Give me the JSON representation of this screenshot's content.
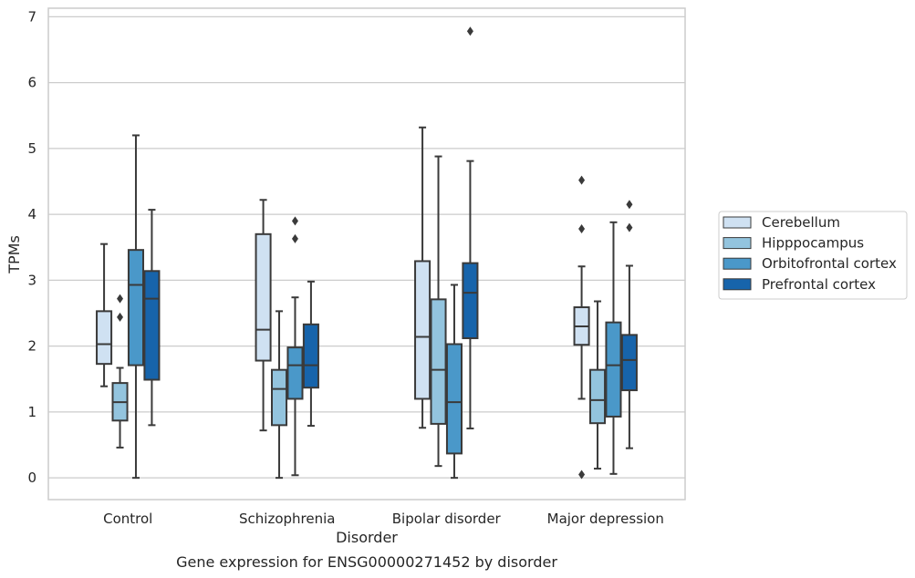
{
  "caption": "Gene expression for ENSG00000271452 by disorder",
  "colors": {
    "Cerebellum": "#cfe1f2",
    "Hipppocampus": "#93c4de",
    "Orbitofrontal cortex": "#4a98c9",
    "Prefrontal cortex": "#1764ab",
    "frame": "#cccccc",
    "grid": "#cccccc",
    "line": "#3a3a3a"
  },
  "chart_data": {
    "type": "box",
    "title": "",
    "xlabel": "Disorder",
    "ylabel": "TPMs",
    "ylim": [
      -0.33,
      7.13
    ],
    "yticks": [
      0,
      1,
      2,
      3,
      4,
      5,
      6,
      7
    ],
    "grid": "horizontal",
    "legend_position": "right",
    "categories": [
      "Control",
      "Schizophrenia",
      "Bipolar disorder",
      "Major depression"
    ],
    "series": [
      {
        "name": "Cerebellum",
        "boxes": [
          {
            "whisker_low": 1.39,
            "q1": 1.73,
            "median": 2.03,
            "q3": 2.53,
            "whisker_high": 3.55,
            "outliers": []
          },
          {
            "whisker_low": 0.72,
            "q1": 1.78,
            "median": 2.25,
            "q3": 3.7,
            "whisker_high": 4.22,
            "outliers": []
          },
          {
            "whisker_low": 0.76,
            "q1": 1.2,
            "median": 2.14,
            "q3": 3.29,
            "whisker_high": 5.32,
            "outliers": []
          },
          {
            "whisker_low": 1.2,
            "q1": 2.02,
            "median": 2.3,
            "q3": 2.59,
            "whisker_high": 3.21,
            "outliers": [
              0.05,
              3.78,
              4.52
            ]
          }
        ]
      },
      {
        "name": "Hipppocampus",
        "boxes": [
          {
            "whisker_low": 0.46,
            "q1": 0.87,
            "median": 1.15,
            "q3": 1.44,
            "whisker_high": 1.67,
            "outliers": [
              2.44,
              2.72
            ]
          },
          {
            "whisker_low": 0.0,
            "q1": 0.8,
            "median": 1.35,
            "q3": 1.64,
            "whisker_high": 2.53,
            "outliers": []
          },
          {
            "whisker_low": 0.18,
            "q1": 0.82,
            "median": 1.64,
            "q3": 2.71,
            "whisker_high": 4.88,
            "outliers": []
          },
          {
            "whisker_low": 0.14,
            "q1": 0.83,
            "median": 1.18,
            "q3": 1.64,
            "whisker_high": 2.68,
            "outliers": []
          }
        ]
      },
      {
        "name": "Orbitofrontal cortex",
        "boxes": [
          {
            "whisker_low": 0.0,
            "q1": 1.71,
            "median": 2.93,
            "q3": 3.46,
            "whisker_high": 5.2,
            "outliers": []
          },
          {
            "whisker_low": 0.04,
            "q1": 1.2,
            "median": 1.71,
            "q3": 1.98,
            "whisker_high": 2.74,
            "outliers": [
              3.63,
              3.9
            ]
          },
          {
            "whisker_low": 0.0,
            "q1": 0.37,
            "median": 1.15,
            "q3": 2.03,
            "whisker_high": 2.93,
            "outliers": []
          },
          {
            "whisker_low": 0.06,
            "q1": 0.93,
            "median": 1.71,
            "q3": 2.36,
            "whisker_high": 3.88,
            "outliers": []
          }
        ]
      },
      {
        "name": "Prefrontal cortex",
        "boxes": [
          {
            "whisker_low": 0.8,
            "q1": 1.49,
            "median": 2.72,
            "q3": 3.14,
            "whisker_high": 4.07,
            "outliers": []
          },
          {
            "whisker_low": 0.79,
            "q1": 1.37,
            "median": 1.71,
            "q3": 2.33,
            "whisker_high": 2.98,
            "outliers": []
          },
          {
            "whisker_low": 0.75,
            "q1": 2.12,
            "median": 2.81,
            "q3": 3.26,
            "whisker_high": 4.81,
            "outliers": [
              6.78
            ]
          },
          {
            "whisker_low": 0.45,
            "q1": 1.33,
            "median": 1.79,
            "q3": 2.17,
            "whisker_high": 3.22,
            "outliers": [
              3.8,
              4.15
            ]
          }
        ]
      }
    ]
  }
}
